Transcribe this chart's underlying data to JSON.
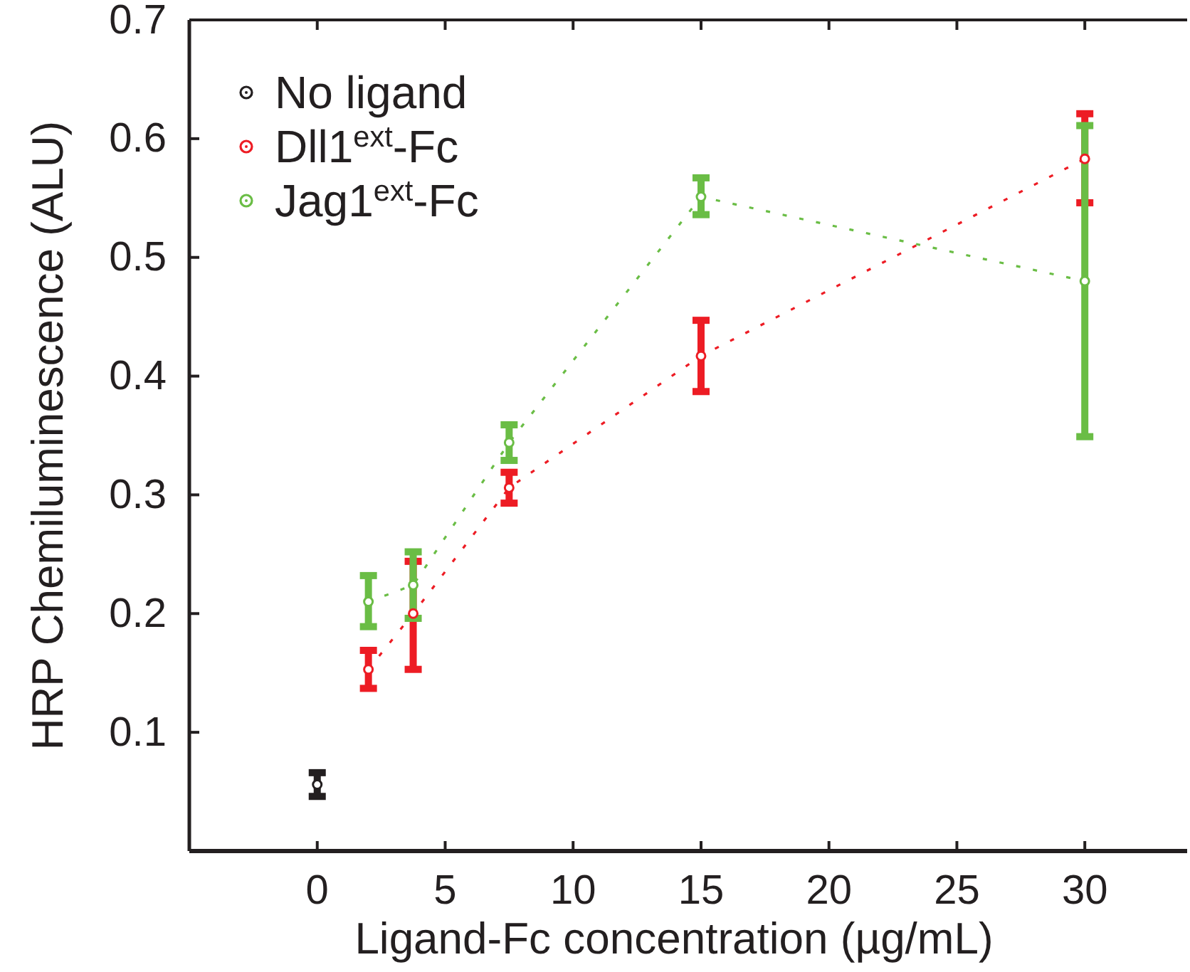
{
  "chart_data": {
    "type": "line",
    "xlabel": "Ligand-Fc concentration (µg/mL)",
    "ylabel": "HRP Chemiluminescence (ALU)",
    "xlim": [
      -5,
      34
    ],
    "xticks": [
      0,
      5,
      10,
      15,
      20,
      25,
      30
    ],
    "ylim": [
      0,
      0.7
    ],
    "yticks": [
      0.1,
      0.2,
      0.3,
      0.4,
      0.5,
      0.6,
      0.7
    ],
    "legend": "top left",
    "line_style": "dotted",
    "grid": false,
    "marker": "circle",
    "series": [
      {
        "name": "No ligand",
        "color": "#231f20",
        "x": [
          0
        ],
        "values": [
          0.056
        ],
        "errors": [
          [
            0.046,
            0.066
          ]
        ]
      },
      {
        "name": "Dll1$^{ext}$-Fc",
        "color": "#ed1c24",
        "x": [
          2,
          3.75,
          7.5,
          15,
          30
        ],
        "values": [
          0.153,
          0.2,
          0.306,
          0.417,
          0.583
        ],
        "errors": [
          [
            0.137,
            0.169
          ],
          [
            0.153,
            0.244
          ],
          [
            0.293,
            0.319
          ],
          [
            0.387,
            0.447
          ],
          [
            0.546,
            0.621
          ]
        ]
      },
      {
        "name": "Jag1$^{ext}$-Fc",
        "color": "#6abd45",
        "x": [
          2,
          3.75,
          7.5,
          15,
          30
        ],
        "values": [
          0.21,
          0.224,
          0.344,
          0.551,
          0.48
        ],
        "errors": [
          [
            0.189,
            0.232
          ],
          [
            0.196,
            0.252
          ],
          [
            0.329,
            0.359
          ],
          [
            0.536,
            0.567
          ],
          [
            0.349,
            0.611
          ]
        ]
      }
    ]
  }
}
